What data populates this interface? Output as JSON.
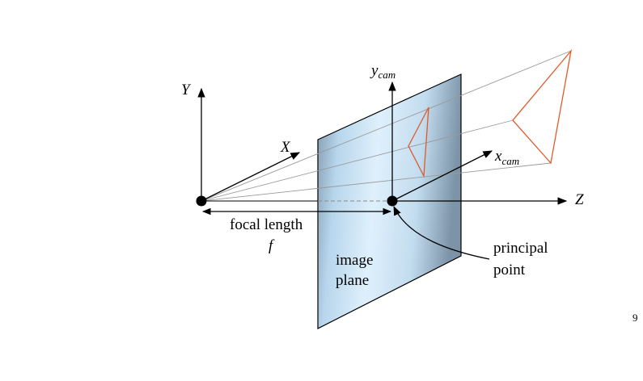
{
  "diagram": {
    "labels": {
      "world_y_axis": "Y",
      "world_x_axis": "X",
      "cam_y_axis": "y",
      "cam_y_sub": "cam",
      "cam_x_axis": "x",
      "cam_x_sub": "cam",
      "z_axis": "Z",
      "focal_length": "focal length",
      "focal_symbol": "f",
      "image_plane_line1": "image",
      "image_plane_line2": "plane",
      "principal_line1": "principal",
      "principal_line2": "point"
    },
    "colors": {
      "object": "#e05a2a",
      "plane_light": "#d6ecfa",
      "plane_dark": "#8aa3b8",
      "axis": "#000000",
      "ray": "#9a9a9a"
    }
  },
  "slide": {
    "page_number": "9"
  }
}
